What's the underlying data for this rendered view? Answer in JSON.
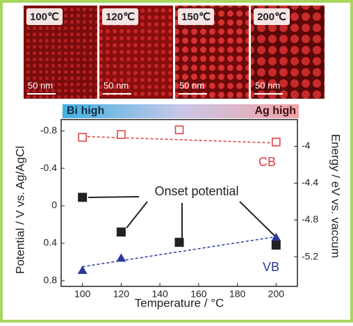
{
  "images": [
    {
      "label": "100℃",
      "scale": "50 nm"
    },
    {
      "label": "120℃",
      "scale": "50 nm"
    },
    {
      "label": "150℃",
      "scale": "50 nm"
    },
    {
      "label": "200℃",
      "scale": "50 nm"
    }
  ],
  "gradient_bar": {
    "left": "Bi high",
    "right": "Ag high"
  },
  "chart_data": {
    "type": "scatter",
    "x_label": "Temperature / °C",
    "y_label": "Potential / V vs. Ag/AgCl",
    "y2_label": "Energy / eV vs. vaccum",
    "annotation": "Onset potential",
    "xlim": [
      89,
      211
    ],
    "xticks": [
      100,
      120,
      140,
      160,
      180,
      200
    ],
    "ylim": [
      -0.92,
      0.86
    ],
    "y_reversed": true,
    "yticks": [
      -0.8,
      -0.4,
      0,
      0.4,
      0.8
    ],
    "y2lim": [
      -5.52,
      -3.71
    ],
    "y2ticks": [
      -4,
      -4.4,
      -4.8,
      -5.2
    ],
    "series": [
      {
        "name": "CB",
        "color": "#e0393b",
        "marker": "open-square",
        "x": [
          100,
          120,
          150,
          200
        ],
        "values": [
          -0.73,
          -0.76,
          -0.81,
          -0.68
        ],
        "fit": [
          -0.74,
          -0.67
        ]
      },
      {
        "name": "VB",
        "color": "#2b3a9a",
        "marker": "triangle",
        "x": [
          100,
          120,
          200
        ],
        "values": [
          0.69,
          0.56,
          0.34
        ],
        "fit": [
          0.65,
          0.33
        ]
      },
      {
        "name": "Onset potential",
        "color": "#222222",
        "marker": "square",
        "x": [
          100,
          120,
          150,
          200
        ],
        "values": [
          -0.09,
          0.28,
          0.39,
          0.42
        ]
      }
    ]
  }
}
